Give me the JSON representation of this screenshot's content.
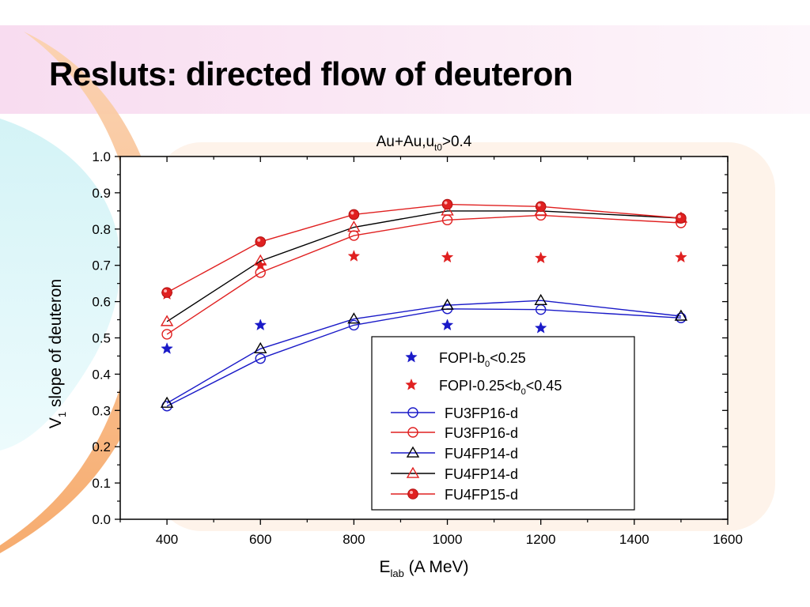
{
  "slide": {
    "title": "Resluts: directed flow of deuteron"
  },
  "chart_data": {
    "type": "scatter",
    "title": {
      "main": "Au+Au,u",
      "sub": "t0",
      "tail": ">0.4"
    },
    "xlabel": {
      "main": "E",
      "sub": "lab",
      "tail": " (A MeV)"
    },
    "ylabel": {
      "main": "V",
      "sub": "1",
      "tail": " slope of deuteron"
    },
    "xlim": [
      300,
      1600
    ],
    "ylim": [
      0.0,
      1.0
    ],
    "xticks": [
      400,
      600,
      800,
      1000,
      1200,
      1400,
      1600
    ],
    "yticks": [
      0.0,
      0.1,
      0.2,
      0.3,
      0.4,
      0.5,
      0.6,
      0.7,
      0.8,
      0.9,
      1.0
    ],
    "legend": {
      "position": "bottom-right"
    },
    "series": [
      {
        "legend": {
          "main": "FOPI-b",
          "sub": "0",
          "tail": "<0.25"
        },
        "color": "#1a1ac8",
        "marker": "star",
        "line": false,
        "x": [
          400,
          600,
          1000,
          1200
        ],
        "y": [
          0.47,
          0.535,
          0.535,
          0.527
        ]
      },
      {
        "legend": {
          "main": "FOPI-0.25<b",
          "sub": "0",
          "tail": "<0.45"
        },
        "color": "#e02020",
        "marker": "star",
        "line": false,
        "x": [
          400,
          600,
          800,
          1000,
          1200,
          1500
        ],
        "y": [
          0.62,
          0.7,
          0.725,
          0.722,
          0.72,
          0.722
        ]
      },
      {
        "legend": {
          "main": "FU3FP16-d",
          "sub": "",
          "tail": ""
        },
        "color": "#1a1ac8",
        "marker": "circle-open",
        "line": true,
        "x": [
          400,
          600,
          800,
          1000,
          1200,
          1500
        ],
        "y": [
          0.312,
          0.443,
          0.535,
          0.58,
          0.578,
          0.555
        ]
      },
      {
        "legend": {
          "main": "FU3FP16-d",
          "sub": "",
          "tail": ""
        },
        "color": "#e02020",
        "marker": "circle-open",
        "line": true,
        "x": [
          400,
          600,
          800,
          1000,
          1200,
          1500
        ],
        "y": [
          0.51,
          0.68,
          0.782,
          0.825,
          0.838,
          0.817
        ]
      },
      {
        "legend": {
          "main": "FU4FP14-d",
          "sub": "",
          "tail": ""
        },
        "color": "#1a1ac8",
        "marker": "triangle-open",
        "line": true,
        "markerColor": "#000000",
        "x": [
          400,
          600,
          800,
          1000,
          1200,
          1500
        ],
        "y": [
          0.32,
          0.47,
          0.552,
          0.59,
          0.603,
          0.56
        ]
      },
      {
        "legend": {
          "main": "FU4FP14-d",
          "sub": "",
          "tail": ""
        },
        "color": "#000000",
        "marker": "triangle-open",
        "line": true,
        "markerColor": "#e02020",
        "x": [
          400,
          600,
          800,
          1000,
          1200,
          1500
        ],
        "y": [
          0.545,
          0.712,
          0.805,
          0.85,
          0.85,
          0.83
        ]
      },
      {
        "legend": {
          "main": "FU4FP15-d",
          "sub": "",
          "tail": ""
        },
        "color": "#e02020",
        "marker": "circle-filled",
        "line": true,
        "x": [
          400,
          600,
          800,
          1000,
          1200,
          1500
        ],
        "y": [
          0.625,
          0.765,
          0.84,
          0.868,
          0.862,
          0.83
        ]
      }
    ]
  }
}
